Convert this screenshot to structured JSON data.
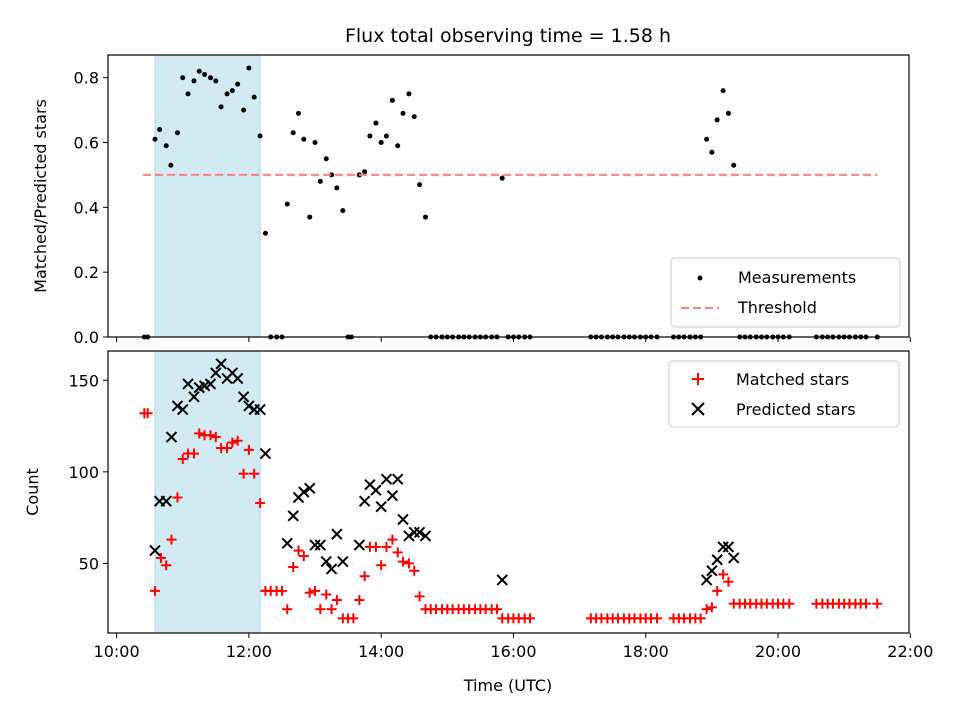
{
  "colors": {
    "measurement": "#000000",
    "threshold": "#ff7f7f",
    "matched": "#ff0000",
    "predicted": "#000000",
    "highlight": "#add8e6"
  },
  "chart_data": [
    {
      "type": "scatter",
      "title": "Flux total observing time = 1.58 h",
      "xlabel": "",
      "ylabel": "Matched/Predicted stars",
      "xlim": [
        9.87,
        21.98
      ],
      "ylim": [
        0,
        0.87
      ],
      "x_ticks": [
        10,
        12,
        14,
        16,
        18,
        20,
        22
      ],
      "y_ticks": [
        0.0,
        0.2,
        0.4,
        0.6,
        0.8
      ],
      "y_tick_labels": [
        "0.0",
        "0.2",
        "0.4",
        "0.6",
        "0.8"
      ],
      "highlight_span": [
        10.58,
        12.17
      ],
      "legend_position": "lower right",
      "series": [
        {
          "name": "Measurements",
          "kind": "scatter",
          "x": [
            10.42,
            10.47,
            10.58,
            10.65,
            10.75,
            10.82,
            10.92,
            11.0,
            11.08,
            11.17,
            11.25,
            11.33,
            11.42,
            11.5,
            11.58,
            11.67,
            11.75,
            11.83,
            11.92,
            12.0,
            12.08,
            12.17,
            12.25,
            12.33,
            12.42,
            12.5,
            12.58,
            12.67,
            12.75,
            12.83,
            12.92,
            13.0,
            13.08,
            13.17,
            13.25,
            13.33,
            13.42,
            13.5,
            13.55,
            13.67,
            13.75,
            13.83,
            13.92,
            14.0,
            14.08,
            14.17,
            14.25,
            14.33,
            14.42,
            14.5,
            14.58,
            14.67,
            14.75,
            14.83,
            14.92,
            15.0,
            15.08,
            15.17,
            15.25,
            15.33,
            15.42,
            15.5,
            15.58,
            15.67,
            15.75,
            15.83,
            15.92,
            16.0,
            16.08,
            16.17,
            16.25,
            17.17,
            17.25,
            17.33,
            17.42,
            17.5,
            17.58,
            17.67,
            17.75,
            17.83,
            17.92,
            18.0,
            18.08,
            18.17,
            18.42,
            18.5,
            18.58,
            18.67,
            18.75,
            18.83,
            18.92,
            19.0,
            19.08,
            19.17,
            19.25,
            19.33,
            19.42,
            19.5,
            19.58,
            19.67,
            19.75,
            19.83,
            19.92,
            20.0,
            20.08,
            20.17,
            20.58,
            20.67,
            20.75,
            20.83,
            20.92,
            21.0,
            21.08,
            21.17,
            21.25,
            21.33,
            21.5
          ],
          "y": [
            0.0,
            0.0,
            0.61,
            0.64,
            0.59,
            0.53,
            0.63,
            0.8,
            0.75,
            0.79,
            0.82,
            0.81,
            0.8,
            0.79,
            0.71,
            0.75,
            0.76,
            0.78,
            0.7,
            0.83,
            0.74,
            0.62,
            0.32,
            0.0,
            0.0,
            0.0,
            0.41,
            0.63,
            0.69,
            0.61,
            0.37,
            0.6,
            0.48,
            0.55,
            0.5,
            0.46,
            0.39,
            0.0,
            0.0,
            0.5,
            0.51,
            0.62,
            0.66,
            0.6,
            0.62,
            0.73,
            0.59,
            0.69,
            0.75,
            0.68,
            0.47,
            0.37,
            0.0,
            0.0,
            0.0,
            0.0,
            0.0,
            0.0,
            0.0,
            0.0,
            0.0,
            0.0,
            0.0,
            0.0,
            0.0,
            0.49,
            0.0,
            0.0,
            0.0,
            0.0,
            0.0,
            0.0,
            0.0,
            0.0,
            0.0,
            0.0,
            0.0,
            0.0,
            0.0,
            0.0,
            0.0,
            0.0,
            0.0,
            0.0,
            0.0,
            0.0,
            0.0,
            0.0,
            0.0,
            0.0,
            0.61,
            0.57,
            0.67,
            0.76,
            0.69,
            0.53,
            0.0,
            0.0,
            0.0,
            0.0,
            0.0,
            0.0,
            0.0,
            0.0,
            0.0,
            0.0,
            0.0,
            0.0,
            0.0,
            0.0,
            0.0,
            0.0,
            0.0,
            0.0,
            0.0,
            0.0,
            0.0
          ]
        },
        {
          "name": "Threshold",
          "kind": "line",
          "x": [
            10.4,
            21.5
          ],
          "y": [
            0.5,
            0.5
          ]
        }
      ]
    },
    {
      "type": "scatter",
      "title": "",
      "xlabel": "Time (UTC)",
      "ylabel": "Count",
      "xlim": [
        9.87,
        21.98
      ],
      "ylim": [
        12,
        166
      ],
      "x_ticks": [
        10,
        12,
        14,
        16,
        18,
        20,
        22
      ],
      "x_tick_labels": [
        "10:00",
        "12:00",
        "14:00",
        "16:00",
        "18:00",
        "20:00",
        "22:00"
      ],
      "y_ticks": [
        50,
        100,
        150
      ],
      "y_tick_labels": [
        "50",
        "100",
        "150"
      ],
      "highlight_span": [
        10.58,
        12.17
      ],
      "legend_position": "upper right",
      "series": [
        {
          "name": "Matched stars",
          "marker": "plus",
          "x": [
            10.42,
            10.47,
            10.58,
            10.67,
            10.75,
            10.83,
            10.92,
            11.0,
            11.08,
            11.17,
            11.25,
            11.33,
            11.42,
            11.5,
            11.58,
            11.67,
            11.75,
            11.83,
            11.92,
            12.0,
            12.08,
            12.17,
            12.25,
            12.33,
            12.42,
            12.5,
            12.58,
            12.67,
            12.75,
            12.83,
            12.92,
            13.0,
            13.08,
            13.17,
            13.25,
            13.33,
            13.42,
            13.5,
            13.58,
            13.67,
            13.75,
            13.83,
            13.92,
            14.0,
            14.08,
            14.17,
            14.25,
            14.33,
            14.42,
            14.5,
            14.58,
            14.67,
            14.75,
            14.83,
            14.92,
            15.0,
            15.08,
            15.17,
            15.25,
            15.33,
            15.42,
            15.5,
            15.58,
            15.67,
            15.75,
            15.83,
            15.92,
            16.0,
            16.08,
            16.17,
            16.25,
            17.17,
            17.25,
            17.33,
            17.42,
            17.5,
            17.58,
            17.67,
            17.75,
            17.83,
            17.92,
            18.0,
            18.08,
            18.17,
            18.42,
            18.5,
            18.58,
            18.67,
            18.75,
            18.83,
            18.92,
            19.0,
            19.08,
            19.17,
            19.25,
            19.33,
            19.42,
            19.5,
            19.58,
            19.67,
            19.75,
            19.83,
            19.92,
            20.0,
            20.08,
            20.17,
            20.58,
            20.67,
            20.75,
            20.83,
            20.92,
            21.0,
            21.08,
            21.17,
            21.25,
            21.33,
            21.5
          ],
          "y": [
            132,
            132,
            35,
            53,
            49,
            63,
            86,
            107,
            110,
            110,
            121,
            120,
            120,
            119,
            113,
            113,
            116,
            117,
            99,
            112,
            99,
            83,
            35,
            35,
            35,
            35,
            25,
            48,
            57,
            54,
            34,
            35,
            25,
            33,
            25,
            30,
            20,
            20,
            20,
            30,
            43,
            59,
            59,
            49,
            59,
            63,
            56,
            51,
            50,
            46,
            32,
            25,
            25,
            25,
            25,
            25,
            25,
            25,
            25,
            25,
            25,
            25,
            25,
            25,
            25,
            20,
            20,
            20,
            20,
            20,
            20,
            20,
            20,
            20,
            20,
            20,
            20,
            20,
            20,
            20,
            20,
            20,
            20,
            20,
            20,
            20,
            20,
            20,
            20,
            20,
            25,
            26,
            35,
            44,
            40,
            28,
            28,
            28,
            28,
            28,
            28,
            28,
            28,
            28,
            28,
            28,
            28,
            28,
            28,
            28,
            28,
            28,
            28,
            28,
            28,
            28,
            28
          ]
        },
        {
          "name": "Predicted stars",
          "marker": "x",
          "x": [
            10.58,
            10.65,
            10.75,
            10.83,
            10.92,
            11.0,
            11.08,
            11.17,
            11.25,
            11.33,
            11.42,
            11.5,
            11.58,
            11.67,
            11.75,
            11.83,
            11.92,
            12.0,
            12.08,
            12.17,
            12.25,
            12.58,
            12.67,
            12.75,
            12.83,
            12.92,
            13.0,
            13.08,
            13.17,
            13.25,
            13.33,
            13.42,
            13.67,
            13.75,
            13.83,
            13.92,
            14.0,
            14.08,
            14.17,
            14.25,
            14.33,
            14.42,
            14.5,
            14.58,
            14.67,
            15.83,
            18.92,
            19.0,
            19.08,
            19.17,
            19.25,
            19.33
          ],
          "y": [
            57,
            84,
            84,
            119,
            136,
            134,
            148,
            141,
            146,
            147,
            148,
            154,
            159,
            151,
            154,
            151,
            141,
            136,
            134,
            134,
            110,
            61,
            76,
            86,
            89,
            91,
            60,
            60,
            51,
            47,
            66,
            51,
            60,
            84,
            93,
            90,
            81,
            96,
            87,
            96,
            74,
            65,
            67,
            67,
            65,
            41,
            41,
            46,
            52,
            59,
            59,
            53
          ]
        }
      ]
    }
  ]
}
